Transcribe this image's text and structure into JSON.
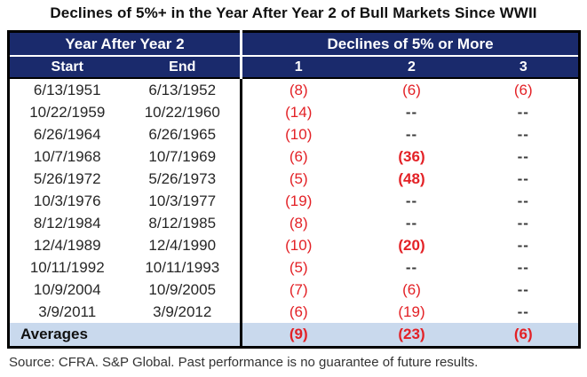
{
  "colors": {
    "header_bg": "#1A2A6C",
    "decline_red": "#E32126",
    "averages_bg": "#C9D9ED",
    "border": "#000000"
  },
  "chart_data": {
    "type": "table",
    "title": "Declines of 5%+ in the Year After Year 2 of Bull Markets Since WWII",
    "column_groups": [
      "Year After Year 2",
      "Declines of 5% or More"
    ],
    "columns": [
      "Start",
      "End",
      "1",
      "2",
      "3"
    ],
    "rows": [
      {
        "start": "6/13/1951",
        "end": "6/13/1952",
        "declines": [
          {
            "t": "(8)"
          },
          {
            "t": "(6)"
          },
          {
            "t": "(6)"
          }
        ]
      },
      {
        "start": "10/22/1959",
        "end": "10/22/1960",
        "declines": [
          {
            "t": "(14)"
          },
          {
            "t": "--"
          },
          {
            "t": "--"
          }
        ]
      },
      {
        "start": "6/26/1964",
        "end": "6/26/1965",
        "declines": [
          {
            "t": "(10)"
          },
          {
            "t": "--"
          },
          {
            "t": "--"
          }
        ]
      },
      {
        "start": "10/7/1968",
        "end": "10/7/1969",
        "declines": [
          {
            "t": "(6)"
          },
          {
            "t": "(36)",
            "strong": true
          },
          {
            "t": "--"
          }
        ]
      },
      {
        "start": "5/26/1972",
        "end": "5/26/1973",
        "declines": [
          {
            "t": "(5)"
          },
          {
            "t": "(48)",
            "strong": true
          },
          {
            "t": "--"
          }
        ]
      },
      {
        "start": "10/3/1976",
        "end": "10/3/1977",
        "declines": [
          {
            "t": "(19)"
          },
          {
            "t": "--"
          },
          {
            "t": "--"
          }
        ]
      },
      {
        "start": "8/12/1984",
        "end": "8/12/1985",
        "declines": [
          {
            "t": "(8)"
          },
          {
            "t": "--"
          },
          {
            "t": "--"
          }
        ]
      },
      {
        "start": "12/4/1989",
        "end": "12/4/1990",
        "declines": [
          {
            "t": "(10)"
          },
          {
            "t": "(20)",
            "strong": true
          },
          {
            "t": "--"
          }
        ]
      },
      {
        "start": "10/11/1992",
        "end": "10/11/1993",
        "declines": [
          {
            "t": "(5)"
          },
          {
            "t": "--"
          },
          {
            "t": "--"
          }
        ]
      },
      {
        "start": "10/9/2004",
        "end": "10/9/2005",
        "declines": [
          {
            "t": "(7)"
          },
          {
            "t": "(6)"
          },
          {
            "t": "--"
          }
        ]
      },
      {
        "start": "3/9/2011",
        "end": "3/9/2012",
        "declines": [
          {
            "t": "(6)"
          },
          {
            "t": "(19)"
          },
          {
            "t": "--"
          }
        ]
      }
    ],
    "averages": {
      "label": "Averages",
      "declines": [
        {
          "t": "(9)",
          "strong": true
        },
        {
          "t": "(23)",
          "strong": true
        },
        {
          "t": "(6)",
          "strong": true
        }
      ]
    },
    "source": "Source: CFRA. S&P Global. Past performance is no guarantee of future results."
  }
}
